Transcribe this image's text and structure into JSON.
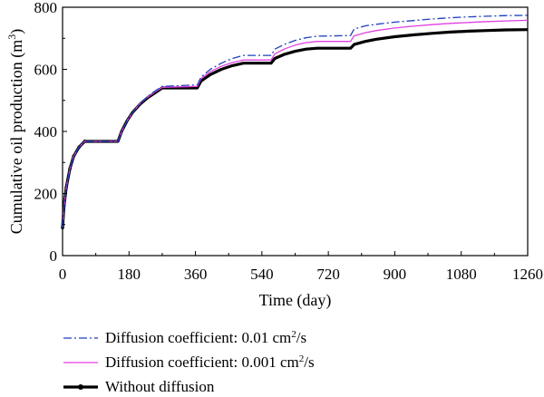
{
  "chart_data": {
    "type": "line",
    "title": "",
    "xlabel": "Time (day)",
    "ylabel_main": "Cumulative oil production (m",
    "ylabel_sup": "3",
    "ylabel_close": ")",
    "xlim": [
      0,
      1260
    ],
    "ylim": [
      0,
      800
    ],
    "xticks": [
      0,
      180,
      360,
      540,
      720,
      900,
      1080,
      1260
    ],
    "yticks": [
      0,
      200,
      400,
      600,
      800
    ],
    "grid": false,
    "legend_position": "below",
    "series": [
      {
        "name": "Diffusion coefficient: 0.01 cm",
        "name_sup": "2",
        "name_suffix": "/s",
        "color": "#1f3fbf",
        "dash": "dashdot",
        "marker": false,
        "points": [
          [
            0,
            90
          ],
          [
            4,
            160
          ],
          [
            10,
            220
          ],
          [
            20,
            280
          ],
          [
            30,
            320
          ],
          [
            45,
            350
          ],
          [
            60,
            368
          ],
          [
            150,
            368
          ],
          [
            160,
            400
          ],
          [
            175,
            435
          ],
          [
            190,
            462
          ],
          [
            210,
            490
          ],
          [
            230,
            512
          ],
          [
            250,
            530
          ],
          [
            270,
            545
          ],
          [
            365,
            550
          ],
          [
            375,
            575
          ],
          [
            400,
            600
          ],
          [
            430,
            620
          ],
          [
            460,
            635
          ],
          [
            490,
            645
          ],
          [
            565,
            645
          ],
          [
            575,
            665
          ],
          [
            600,
            680
          ],
          [
            630,
            693
          ],
          [
            660,
            702
          ],
          [
            690,
            707
          ],
          [
            780,
            709
          ],
          [
            790,
            730
          ],
          [
            820,
            740
          ],
          [
            850,
            745
          ],
          [
            900,
            752
          ],
          [
            950,
            757
          ],
          [
            1000,
            762
          ],
          [
            1050,
            766
          ],
          [
            1100,
            769
          ],
          [
            1150,
            771
          ],
          [
            1200,
            773
          ],
          [
            1260,
            774
          ]
        ]
      },
      {
        "name": "Diffusion coefficient: 0.001 cm",
        "name_sup": "2",
        "name_suffix": "/s",
        "color": "#e040e0",
        "dash": "solid",
        "marker": false,
        "points": [
          [
            0,
            90
          ],
          [
            4,
            160
          ],
          [
            10,
            220
          ],
          [
            20,
            280
          ],
          [
            30,
            320
          ],
          [
            45,
            350
          ],
          [
            60,
            368
          ],
          [
            150,
            368
          ],
          [
            160,
            400
          ],
          [
            175,
            435
          ],
          [
            190,
            462
          ],
          [
            210,
            490
          ],
          [
            230,
            510
          ],
          [
            250,
            527
          ],
          [
            270,
            542
          ],
          [
            365,
            545
          ],
          [
            375,
            570
          ],
          [
            400,
            592
          ],
          [
            430,
            610
          ],
          [
            460,
            622
          ],
          [
            490,
            630
          ],
          [
            565,
            630
          ],
          [
            575,
            650
          ],
          [
            600,
            665
          ],
          [
            630,
            678
          ],
          [
            660,
            686
          ],
          [
            690,
            690
          ],
          [
            780,
            690
          ],
          [
            790,
            708
          ],
          [
            820,
            718
          ],
          [
            850,
            725
          ],
          [
            900,
            733
          ],
          [
            950,
            739
          ],
          [
            1000,
            744
          ],
          [
            1050,
            748
          ],
          [
            1100,
            751
          ],
          [
            1150,
            754
          ],
          [
            1200,
            756
          ],
          [
            1260,
            758
          ]
        ]
      },
      {
        "name": "Without diffusion",
        "color": "#000000",
        "dash": "solid",
        "marker": true,
        "points": [
          [
            0,
            90
          ],
          [
            4,
            160
          ],
          [
            10,
            220
          ],
          [
            20,
            280
          ],
          [
            30,
            320
          ],
          [
            45,
            350
          ],
          [
            60,
            368
          ],
          [
            150,
            368
          ],
          [
            160,
            400
          ],
          [
            175,
            435
          ],
          [
            190,
            462
          ],
          [
            210,
            488
          ],
          [
            230,
            508
          ],
          [
            250,
            524
          ],
          [
            270,
            540
          ],
          [
            365,
            540
          ],
          [
            375,
            562
          ],
          [
            400,
            583
          ],
          [
            430,
            600
          ],
          [
            460,
            612
          ],
          [
            490,
            620
          ],
          [
            565,
            620
          ],
          [
            575,
            635
          ],
          [
            600,
            648
          ],
          [
            630,
            658
          ],
          [
            660,
            665
          ],
          [
            690,
            668
          ],
          [
            780,
            668
          ],
          [
            790,
            680
          ],
          [
            820,
            690
          ],
          [
            850,
            697
          ],
          [
            900,
            705
          ],
          [
            950,
            711
          ],
          [
            1000,
            716
          ],
          [
            1050,
            720
          ],
          [
            1100,
            723
          ],
          [
            1150,
            725
          ],
          [
            1200,
            727
          ],
          [
            1260,
            728
          ]
        ]
      }
    ]
  }
}
